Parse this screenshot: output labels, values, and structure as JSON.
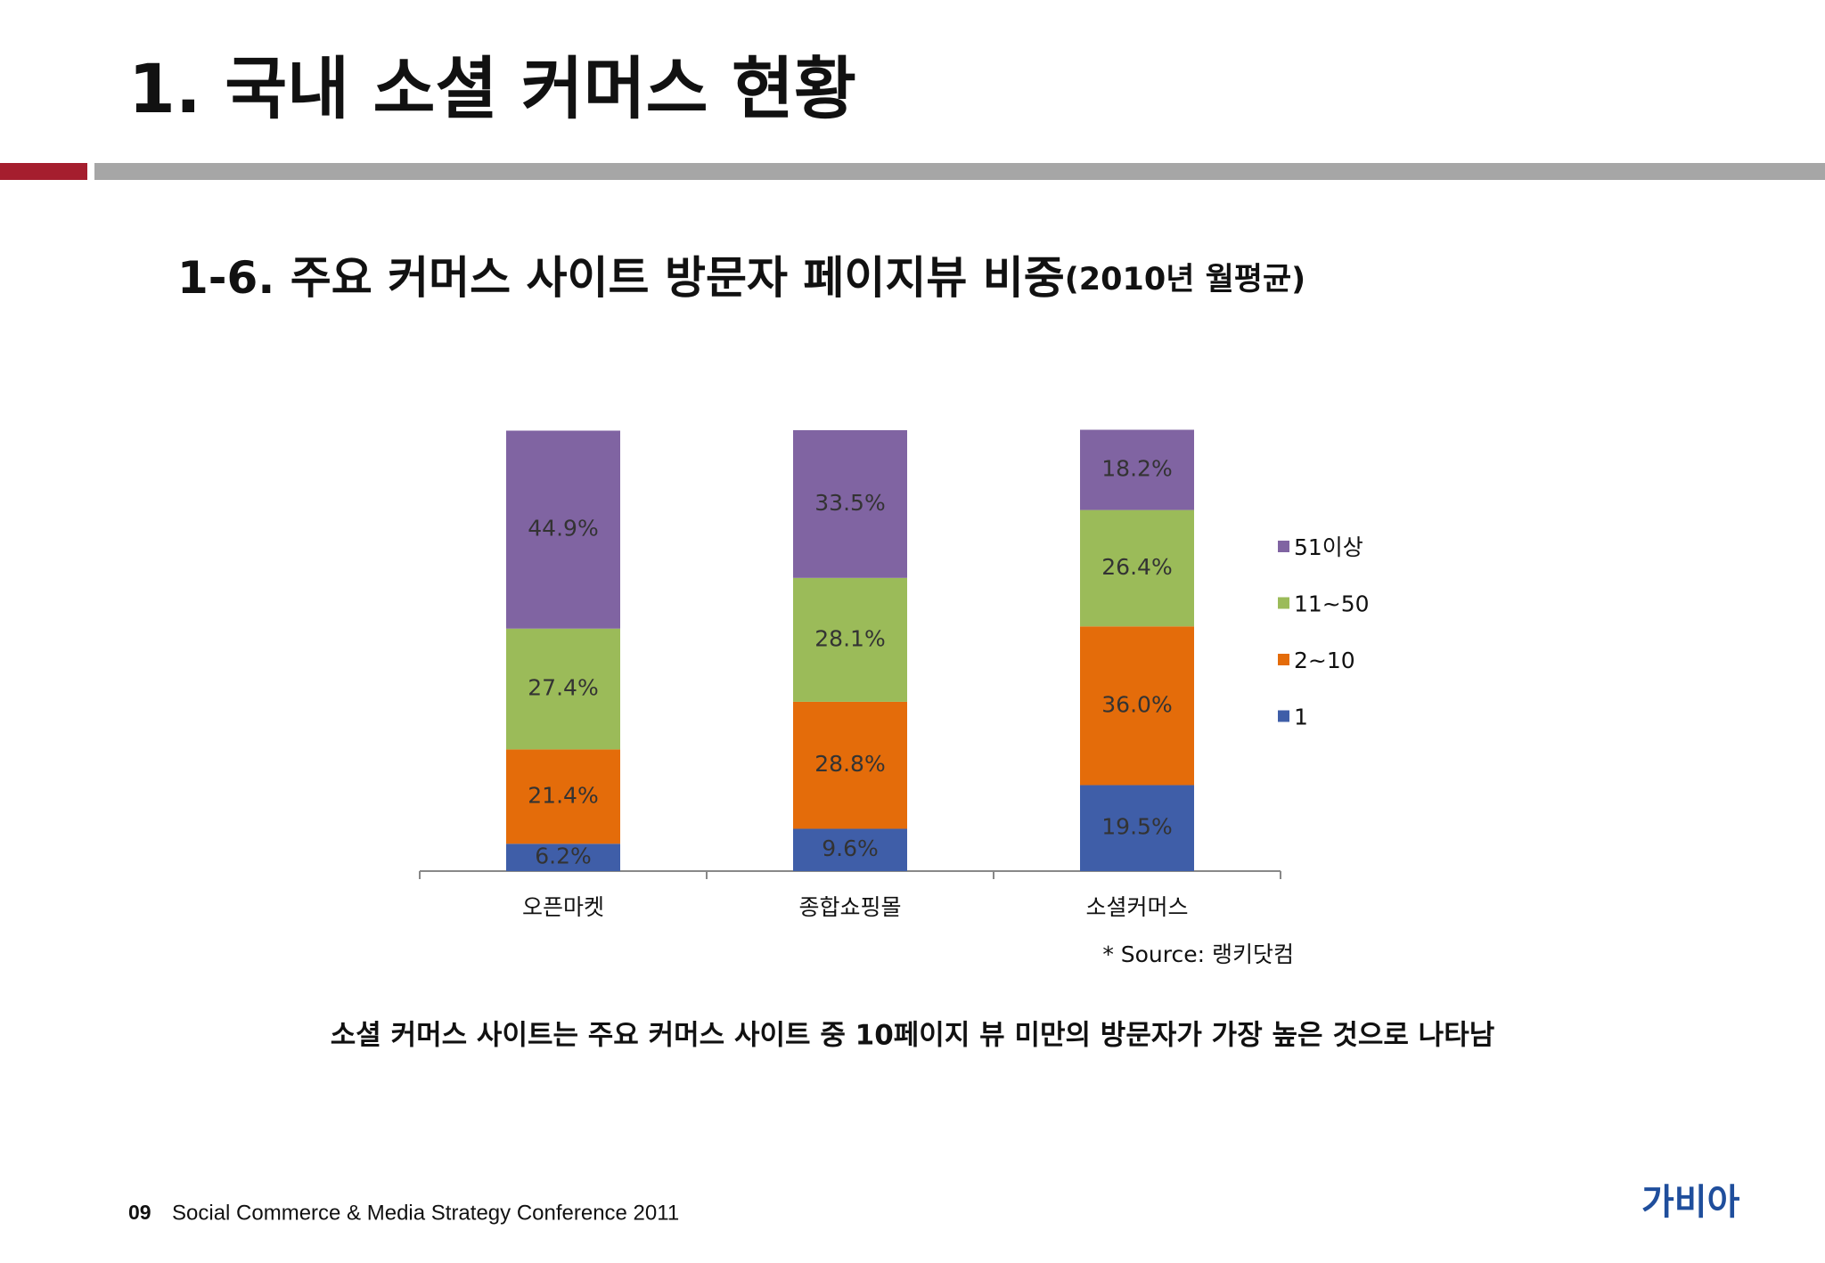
{
  "header": {
    "title": "1. 국내 소셜 커머스 현황"
  },
  "chart_data": {
    "type": "stacked_bar",
    "title": "1-6. 주요 커머스 사이트 방문자 페이지뷰 비중",
    "subtitle": "(2010년 월평균)",
    "categories": [
      "오픈마켓",
      "종합쇼핑몰",
      "소셜커머스"
    ],
    "series": [
      {
        "name": "1",
        "color": "#3f5ea8",
        "values": [
          6.2,
          9.6,
          19.5
        ],
        "value_labels": [
          "6.2%",
          "9.6%",
          "19.5%"
        ]
      },
      {
        "name": "2~10",
        "color": "#e46c0a",
        "values": [
          21.4,
          28.8,
          36.0
        ],
        "value_labels": [
          "21.4%",
          "28.8%",
          "36.0%"
        ]
      },
      {
        "name": "11~50",
        "color": "#9bbb59",
        "values": [
          27.4,
          28.1,
          26.4
        ],
        "value_labels": [
          "27.4%",
          "28.1%",
          "26.4%"
        ]
      },
      {
        "name": "51이상",
        "color": "#8064a2",
        "values": [
          44.9,
          33.5,
          18.2
        ],
        "value_labels": [
          "44.9%",
          "33.5%",
          "18.2%"
        ]
      }
    ],
    "ylim": [
      0,
      100
    ],
    "legend": "right",
    "source": "* Source: 랭키닷컴"
  },
  "caption": "소셜 커머스 사이트는 주요 커머스 사이트 중 10페이지 뷰 미만의 방문자가 가장 높은 것으로 나타남",
  "footer": {
    "page": "09",
    "text": "Social Commerce & Media Strategy Conference 2011",
    "logo": "가비아"
  }
}
